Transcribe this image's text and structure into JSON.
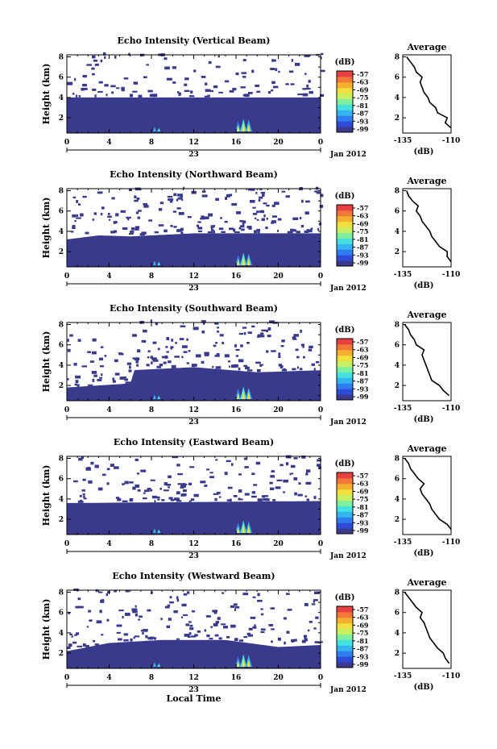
{
  "figure": {
    "xlabel": "Local Time",
    "x_ticks": [
      "0",
      "4",
      "8",
      "12",
      "16",
      "20",
      "0"
    ],
    "date_tick": "23",
    "date_label": "Jan 2012",
    "ylabel": "Height (km)",
    "y_ticks": [
      "2",
      "4",
      "6",
      "8"
    ],
    "colorbar_unit": "(dB)",
    "colorbar_ticks": [
      "-57",
      "-63",
      "-69",
      "-75",
      "-81",
      "-87",
      "-93",
      "-99"
    ],
    "colorbar_colors": [
      "#3a3a8c",
      "#2e4bd6",
      "#2f7df0",
      "#34b4f0",
      "#45e0e0",
      "#7ef0a0",
      "#c8f060",
      "#f0e040",
      "#f5b030",
      "#f07838",
      "#e84040"
    ],
    "avg_title": "Average",
    "avg_xticks": [
      "-135",
      "-110"
    ],
    "avg_xlabel": "(dB)",
    "avg_yticks": [
      "2",
      "4",
      "6",
      "8"
    ]
  },
  "chart_data": [
    {
      "type": "heatmap",
      "title": "Echo Intensity (Vertical Beam)",
      "x_unit": "local hour",
      "xlim": [
        0,
        24
      ],
      "ylim": [
        0.5,
        8.2
      ],
      "floor_profile": [
        [
          0,
          4.0
        ],
        [
          24,
          4.0
        ]
      ],
      "speckle_density": 0.08,
      "cells": [
        {
          "x": 8.3,
          "y": 1.5,
          "v": -90
        },
        {
          "x": 8.7,
          "y": 1.4,
          "v": -88
        },
        {
          "x": 16.2,
          "y": 1.7,
          "v": -80
        },
        {
          "x": 16.7,
          "y": 1.9,
          "v": -75
        },
        {
          "x": 17.2,
          "y": 1.8,
          "v": -78
        }
      ],
      "average_profile": {
        "heights": [
          1,
          1.5,
          2,
          2.5,
          3,
          3.5,
          4,
          4.5,
          5,
          5.5,
          6,
          6.5,
          7,
          7.5,
          8
        ],
        "values": [
          -110,
          -113,
          -112,
          -117,
          -118,
          -121,
          -122,
          -124,
          -125,
          -126,
          -125,
          -128,
          -129,
          -131,
          -133
        ]
      }
    },
    {
      "type": "heatmap",
      "title": "Echo Intensity (Northward Beam)",
      "x_unit": "local hour",
      "xlim": [
        0,
        24
      ],
      "ylim": [
        0.5,
        8.2
      ],
      "floor_profile": [
        [
          0,
          3.2
        ],
        [
          3,
          3.6
        ],
        [
          6,
          3.5
        ],
        [
          12,
          3.8
        ],
        [
          18,
          3.8
        ],
        [
          24,
          3.8
        ]
      ],
      "speckle_density": 0.12,
      "cells": [
        {
          "x": 8.3,
          "y": 1.5,
          "v": -90
        },
        {
          "x": 8.7,
          "y": 1.4,
          "v": -88
        },
        {
          "x": 16.2,
          "y": 1.7,
          "v": -80
        },
        {
          "x": 16.7,
          "y": 1.9,
          "v": -75
        },
        {
          "x": 17.2,
          "y": 1.8,
          "v": -78
        }
      ],
      "average_profile": {
        "heights": [
          1,
          1.5,
          2,
          2.5,
          3,
          3.5,
          4,
          4.5,
          5,
          5.5,
          6,
          6.5,
          7,
          7.5,
          8
        ],
        "values": [
          -110,
          -112,
          -112,
          -116,
          -118,
          -120,
          -121,
          -123,
          -125,
          -126,
          -128,
          -127,
          -130,
          -132,
          -133
        ]
      }
    },
    {
      "type": "heatmap",
      "title": "Echo Intensity (Southward Beam)",
      "x_unit": "local hour",
      "xlim": [
        0,
        24
      ],
      "ylim": [
        0.5,
        8.2
      ],
      "floor_profile": [
        [
          0,
          1.8
        ],
        [
          6,
          2.2
        ],
        [
          6.1,
          3.5
        ],
        [
          12,
          3.8
        ],
        [
          18,
          3.3
        ],
        [
          24,
          3.5
        ]
      ],
      "speckle_density": 0.12,
      "cells": [
        {
          "x": 8.3,
          "y": 1.5,
          "v": -90
        },
        {
          "x": 8.7,
          "y": 1.4,
          "v": -88
        },
        {
          "x": 16.2,
          "y": 1.7,
          "v": -80
        },
        {
          "x": 16.7,
          "y": 1.9,
          "v": -75
        },
        {
          "x": 17.2,
          "y": 1.8,
          "v": -78
        }
      ],
      "average_profile": {
        "heights": [
          1,
          1.5,
          2,
          2.5,
          3,
          3.5,
          4,
          4.5,
          5,
          5.5,
          6,
          6.5,
          7,
          7.5,
          8
        ],
        "values": [
          -111,
          -114,
          -116,
          -120,
          -121,
          -122,
          -123,
          -124,
          -125,
          -124,
          -128,
          -129,
          -131,
          -132,
          -134
        ]
      }
    },
    {
      "type": "heatmap",
      "title": "Echo Intensity (Eastward Beam)",
      "x_unit": "local hour",
      "xlim": [
        0,
        24
      ],
      "ylim": [
        0.5,
        8.2
      ],
      "floor_profile": [
        [
          0,
          3.6
        ],
        [
          24,
          3.8
        ]
      ],
      "speckle_density": 0.1,
      "cells": [
        {
          "x": 8.3,
          "y": 1.5,
          "v": -90
        },
        {
          "x": 8.7,
          "y": 1.4,
          "v": -88
        },
        {
          "x": 16.2,
          "y": 1.7,
          "v": -80
        },
        {
          "x": 16.7,
          "y": 1.9,
          "v": -75
        },
        {
          "x": 17.2,
          "y": 1.8,
          "v": -78
        }
      ],
      "average_profile": {
        "heights": [
          1,
          1.5,
          2,
          2.5,
          3,
          3.5,
          4,
          4.5,
          5,
          5.5,
          6,
          6.5,
          7,
          7.5,
          8
        ],
        "values": [
          -110,
          -112,
          -116,
          -118,
          -120,
          -121,
          -123,
          -125,
          -126,
          -124,
          -127,
          -129,
          -131,
          -132,
          -134
        ]
      }
    },
    {
      "type": "heatmap",
      "title": "Echo Intensity (Westward Beam)",
      "x_unit": "local hour",
      "xlim": [
        0,
        24
      ],
      "ylim": [
        0.5,
        8.2
      ],
      "floor_profile": [
        [
          0,
          2.2
        ],
        [
          4,
          3.0
        ],
        [
          9,
          3.3
        ],
        [
          15,
          3.3
        ],
        [
          20,
          2.6
        ],
        [
          24,
          2.8
        ]
      ],
      "speckle_density": 0.11,
      "cells": [
        {
          "x": 8.3,
          "y": 1.5,
          "v": -90
        },
        {
          "x": 8.7,
          "y": 1.4,
          "v": -88
        },
        {
          "x": 16.2,
          "y": 1.7,
          "v": -80
        },
        {
          "x": 16.7,
          "y": 1.9,
          "v": -75
        },
        {
          "x": 17.2,
          "y": 1.8,
          "v": -78
        }
      ],
      "average_profile": {
        "heights": [
          1,
          1.5,
          2,
          2.5,
          3,
          3.5,
          4,
          4.5,
          5,
          5.5,
          6,
          6.5,
          7,
          7.5,
          8
        ],
        "values": [
          -111,
          -113,
          -114,
          -117,
          -119,
          -121,
          -122,
          -123,
          -124,
          -126,
          -125,
          -128,
          -130,
          -132,
          -134
        ]
      }
    }
  ]
}
